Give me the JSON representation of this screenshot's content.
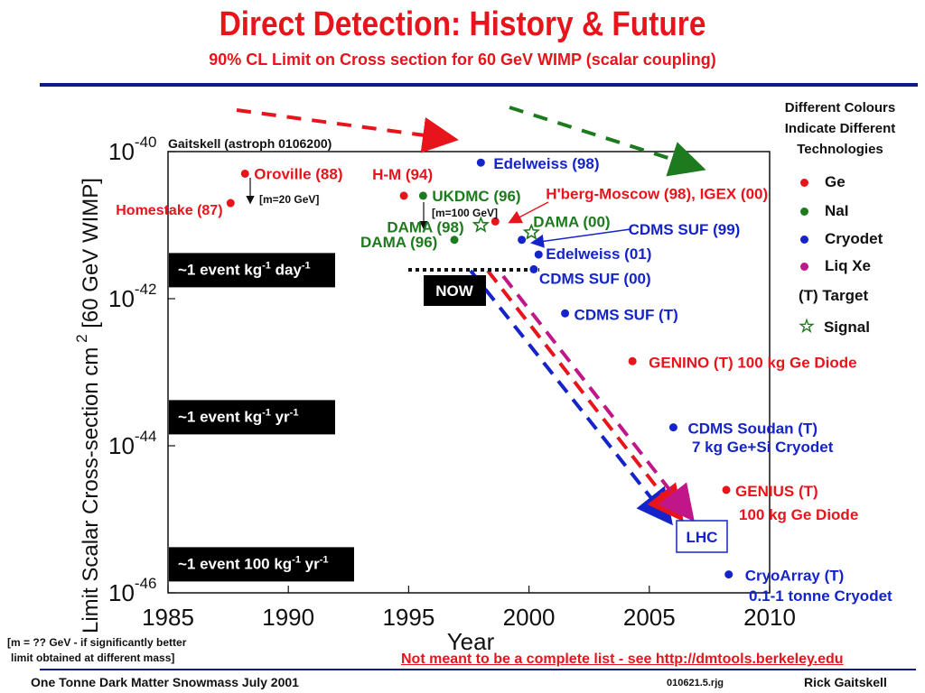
{
  "title": "Direct Detection: History & Future",
  "subtitle": "90% CL Limit on Cross section for 60 GeV WIMP (scalar coupling)",
  "chart_data": {
    "type": "scatter",
    "ylabel_main": "Limit Scalar Cross-section cm",
    "ylabel_sup": "2",
    "ylabel_rest": " [60 GeV WIMP]",
    "xlabel": "Year",
    "xlim": [
      1985,
      2010
    ],
    "ylim_exp": [
      -46,
      -40
    ],
    "xticks": [
      "1985",
      "1990",
      "1995",
      "2000",
      "2005",
      "2010"
    ],
    "yticks": [
      {
        "exp": -40,
        "base": "10",
        "sup": "-40"
      },
      {
        "exp": -42,
        "base": "10",
        "sup": "-42"
      },
      {
        "exp": -44,
        "base": "10",
        "sup": "-44"
      },
      {
        "exp": -46,
        "base": "10",
        "sup": "-46"
      }
    ],
    "points": [
      {
        "label": "Homestake (87)",
        "x": 1987.6,
        "y": -40.7,
        "tech": "Ge"
      },
      {
        "label": "Oroville (88)",
        "x": 1988.2,
        "y": -40.3,
        "tech": "Ge"
      },
      {
        "label": "H-M (94)",
        "x": 1994.8,
        "y": -40.6,
        "tech": "Ge"
      },
      {
        "label": "UKDMC (96)",
        "x": 1995.6,
        "y": -40.6,
        "tech": "NaI"
      },
      {
        "label": "DAMA (96)",
        "x": 1996.9,
        "y": -41.2,
        "tech": "NaI"
      },
      {
        "label": "DAMA (98)",
        "x": 1998.0,
        "y": -41.0,
        "tech": "NaI",
        "signal": true
      },
      {
        "label": "H'berg-Moscow (98), IGEX (00)",
        "x": 1998.6,
        "y": -40.95,
        "tech": "Ge"
      },
      {
        "label": "Edelweiss (98)",
        "x": 1998.0,
        "y": -40.15,
        "tech": "Cryodet"
      },
      {
        "label": "DAMA (00)",
        "x": 2000.1,
        "y": -41.1,
        "tech": "NaI",
        "signal": true
      },
      {
        "label": "CDMS SUF (99)",
        "x": 1999.7,
        "y": -41.2,
        "tech": "Cryodet"
      },
      {
        "label": "Edelweiss (01)",
        "x": 2000.4,
        "y": -41.4,
        "tech": "Cryodet"
      },
      {
        "label": "CDMS SUF (00)",
        "x": 2000.2,
        "y": -41.6,
        "tech": "Cryodet"
      },
      {
        "label": "CDMS SUF (T)",
        "x": 2001.5,
        "y": -42.2,
        "tech": "Cryodet"
      },
      {
        "label": "GENINO (T) 100 kg Ge Diode",
        "x": 2004.3,
        "y": -42.85,
        "tech": "Ge"
      },
      {
        "label": "CDMS Soudan (T)",
        "x": 2006.0,
        "y": -43.75,
        "tech": "Cryodet"
      },
      {
        "label": "GENIUS (T)",
        "x": 2008.2,
        "y": -44.6,
        "tech": "Ge"
      },
      {
        "label": "CryoArray (T)",
        "x": 2008.3,
        "y": -45.75,
        "tech": "Cryodet"
      }
    ],
    "event_rates": [
      {
        "label": "~1 event kg",
        "sup1": "-1",
        "mid": " day",
        "sup2": "-1",
        "y": -41.6
      },
      {
        "label": "~1 event kg",
        "sup1": "-1",
        "mid": " yr",
        "sup2": "-1",
        "y": -43.6
      },
      {
        "label": "~1 event 100 kg",
        "sup1": "-1",
        "mid": " yr",
        "sup2": "-1",
        "y": -45.6
      }
    ],
    "now_label": "NOW",
    "lhc_label": "LHC",
    "source_note": "Gaitskell (astroph 0106200)",
    "mass_notes": [
      "[m=20 GeV]",
      "[m=100 GeV]"
    ],
    "extra_labels": [
      "7 kg Ge+Si Cryodet",
      "100 kg Ge Diode",
      "0.1-1 tonne Cryodet"
    ],
    "colors": {
      "Ge": "#e8141c",
      "NaI": "#1e7a1e",
      "Cryodet": "#1424c8",
      "LiqXe": "#c0168a"
    }
  },
  "legend": {
    "heading": [
      "Different Colours",
      "Indicate Different",
      "Technologies"
    ],
    "items": [
      {
        "label": "Ge",
        "color": "#e8141c"
      },
      {
        "label": "NaI",
        "color": "#1e7a1e"
      },
      {
        "label": "Cryodet",
        "color": "#1424c8"
      },
      {
        "label": "Liq Xe",
        "color": "#c0168a"
      }
    ],
    "target": "(T)  Target",
    "signal": "Signal"
  },
  "footnote": [
    "[m = ?? GeV - if significantly better",
    "limit obtained at different mass]"
  ],
  "disclaimer": "Not meant to be a complete list - see http://dmtools.berkeley.edu",
  "footer": {
    "left": "One Tonne Dark Matter Snowmass July 2001",
    "code": "010621.5.rjg",
    "right": "Rick Gaitskell"
  }
}
